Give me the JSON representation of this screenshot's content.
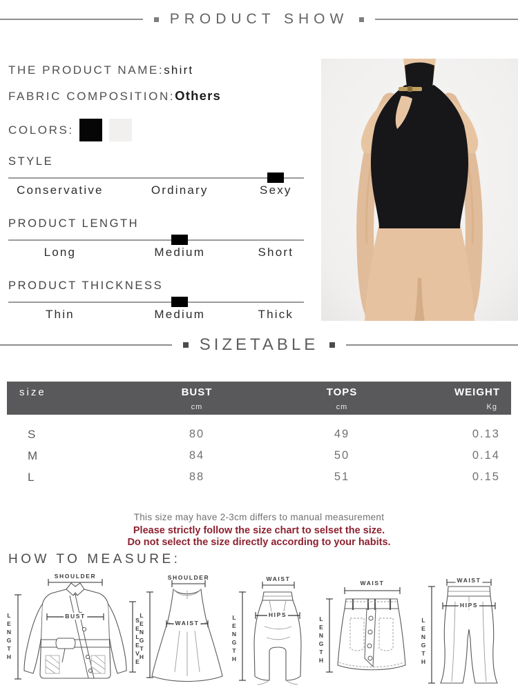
{
  "header": {
    "title": "PRODUCT SHOW"
  },
  "product": {
    "name_label": "THE PRODUCT NAME:",
    "name_value": "shirt",
    "fabric_label": "FABRIC COMPOSITION:",
    "fabric_value": "Others",
    "colors_label": "COLORS:",
    "colors": [
      {
        "name": "black",
        "hex": "#060606"
      },
      {
        "name": "off-white",
        "hex": "#f1f0ee"
      }
    ]
  },
  "attributes": [
    {
      "label": "STYLE",
      "options": [
        "Conservative",
        "Ordinary",
        "Sexy"
      ],
      "selected_index": 2,
      "selected": "Sexy"
    },
    {
      "label": "PRODUCT LENGTH",
      "options": [
        "Long",
        "Medium",
        "Short"
      ],
      "selected_index": 1,
      "selected": "Medium"
    },
    {
      "label": "PRODUCT THICKNESS",
      "options": [
        "Thin",
        "Medium",
        "Thick"
      ],
      "selected_index": 1,
      "selected": "Medium"
    }
  ],
  "size_section": {
    "title": "SIZETABLE"
  },
  "size_table": {
    "columns": [
      "size",
      "BUST",
      "TOPS",
      "WEIGHT"
    ],
    "units": [
      "cm",
      "cm",
      "Kg"
    ],
    "rows": [
      {
        "size": "S",
        "bust": "80",
        "tops": "49",
        "weight": "0.13"
      },
      {
        "size": "M",
        "bust": "84",
        "tops": "50",
        "weight": "0.14"
      },
      {
        "size": "L",
        "bust": "88",
        "tops": "51",
        "weight": "0.15"
      }
    ]
  },
  "notes": {
    "line1": "This size may have 2-3cm differs to manual measurement",
    "line2": "Please strictly follow the size chart to selset the size.",
    "line3": "Do not select the size directly according to your habits."
  },
  "measure": {
    "title": "HOW TO MEASURE:",
    "diagrams": [
      {
        "name": "jacket",
        "top": "SHOULDER",
        "left": "LENGTH",
        "mid": "BUST",
        "right": "SELEVE"
      },
      {
        "name": "dress",
        "top": "SHOULDER",
        "left": "LENGTH",
        "mid": "WAIST"
      },
      {
        "name": "pencil-skirt",
        "top": "WAIST",
        "left": "LENGTH",
        "mid": "HIPS"
      },
      {
        "name": "mini-skirt",
        "top": "WAIST",
        "left": "LENGTH"
      },
      {
        "name": "pants",
        "top": "WAIST",
        "left": "LENGTH",
        "mid": "HIPS"
      }
    ]
  }
}
